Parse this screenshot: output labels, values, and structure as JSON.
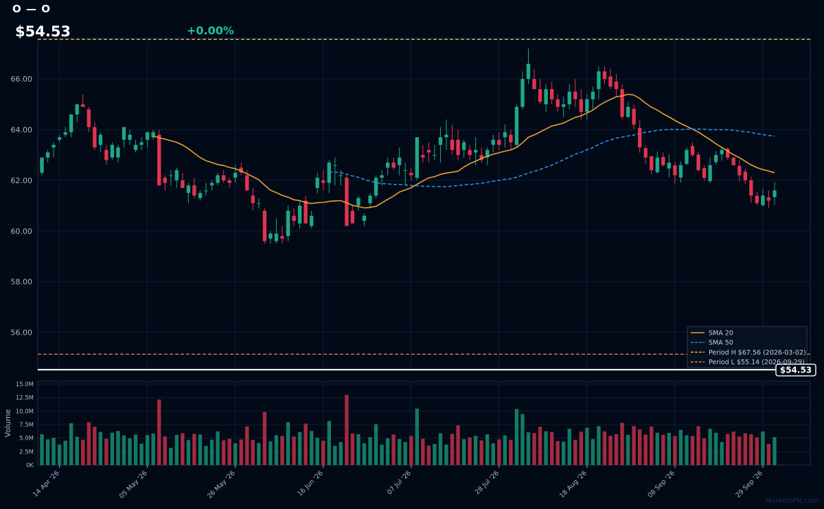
{
  "header": {
    "ticker": "O — O",
    "price": "$54.53",
    "change": "+0.00%"
  },
  "watermark": "MarketsFN.com",
  "colors": {
    "up": "#1fa888",
    "down": "#e0354f",
    "sma20": "#f0a030",
    "sma50": "#2e8ee6",
    "period_high": "#e8b84a",
    "period_low": "#e87a4a",
    "last_price": "#ffffff"
  },
  "last_price_label": "$54.53",
  "chart_data": [
    {
      "type": "candlestick",
      "title": "",
      "ylim": [
        54.5,
        67.6
      ],
      "yticks": [
        56,
        58,
        60,
        62,
        64,
        66
      ],
      "ytick_labels": [
        "56.00",
        "58.00",
        "60.00",
        "62.00",
        "64.00",
        "66.00"
      ],
      "grid": true,
      "legend_placement": "bottom-right",
      "legend": [
        "SMA 20",
        "SMA 50",
        "Period H $67.56 (2026-03-02)",
        "Period L $55.14 (2026-09-29)"
      ],
      "xtick_labels": [
        "14 Apr '26",
        "05 May '26",
        "26 May '26",
        "16 Jun '26",
        "07 Jul '26",
        "28 Jul '26",
        "18 Aug '26",
        "08 Sep '26",
        "29 Sep '26"
      ],
      "xtick_index": [
        3,
        18,
        33,
        48,
        63,
        78,
        93,
        108,
        123
      ],
      "reference_lines": {
        "period_high": 67.56,
        "period_low": 55.14,
        "last": 54.53
      },
      "ohlc": [
        [
          62.3,
          62.9,
          62.2,
          62.9
        ],
        [
          62.9,
          63.2,
          62.7,
          63.1
        ],
        [
          63.3,
          63.5,
          62.9,
          63.4
        ],
        [
          63.6,
          63.8,
          63.5,
          63.7
        ],
        [
          63.8,
          64.1,
          63.7,
          63.9
        ],
        [
          63.9,
          64.6,
          63.7,
          64.6
        ],
        [
          64.6,
          65.0,
          64.3,
          65.0
        ],
        [
          65.0,
          65.4,
          64.9,
          64.9
        ],
        [
          64.8,
          64.9,
          63.9,
          64.1
        ],
        [
          64.1,
          64.3,
          63.2,
          63.3
        ],
        [
          63.4,
          63.9,
          63.1,
          63.8
        ],
        [
          63.2,
          63.4,
          62.6,
          62.8
        ],
        [
          62.9,
          63.5,
          62.8,
          63.4
        ],
        [
          62.9,
          63.4,
          62.7,
          63.3
        ],
        [
          63.6,
          64.1,
          63.3,
          64.1
        ],
        [
          63.6,
          64.0,
          63.4,
          63.8
        ],
        [
          63.2,
          63.6,
          63.1,
          63.4
        ],
        [
          63.4,
          63.7,
          63.2,
          63.5
        ],
        [
          63.6,
          63.8,
          63.3,
          63.9
        ],
        [
          63.7,
          64.0,
          63.6,
          63.9
        ],
        [
          63.8,
          64.0,
          61.8,
          61.8
        ],
        [
          62.1,
          62.2,
          61.6,
          61.9
        ],
        [
          62.2,
          62.4,
          61.8,
          62.2
        ],
        [
          62.0,
          62.5,
          61.7,
          62.4
        ],
        [
          62.0,
          62.3,
          61.7,
          61.7
        ],
        [
          61.5,
          61.9,
          61.1,
          61.8
        ],
        [
          61.8,
          62.1,
          61.3,
          61.4
        ],
        [
          61.3,
          61.6,
          61.2,
          61.5
        ],
        [
          61.6,
          61.9,
          61.4,
          61.6
        ],
        [
          61.8,
          62.0,
          61.6,
          61.9
        ],
        [
          61.9,
          62.3,
          61.8,
          62.2
        ],
        [
          62.2,
          62.4,
          61.9,
          62.0
        ],
        [
          62.0,
          62.1,
          61.7,
          61.9
        ],
        [
          62.1,
          62.6,
          61.9,
          62.3
        ],
        [
          62.5,
          62.7,
          62.2,
          62.3
        ],
        [
          62.2,
          62.4,
          61.6,
          61.6
        ],
        [
          61.4,
          61.7,
          60.8,
          61.1
        ],
        [
          61.1,
          61.3,
          60.9,
          61.1
        ],
        [
          60.8,
          60.9,
          59.5,
          59.6
        ],
        [
          59.7,
          60.0,
          59.5,
          59.9
        ],
        [
          59.6,
          60.5,
          59.5,
          59.9
        ],
        [
          59.8,
          60.2,
          59.5,
          59.7
        ],
        [
          59.8,
          61.0,
          59.6,
          60.8
        ],
        [
          60.6,
          60.9,
          60.2,
          60.4
        ],
        [
          60.3,
          61.2,
          60.1,
          61.0
        ],
        [
          61.2,
          61.4,
          60.3,
          60.3
        ],
        [
          60.2,
          60.8,
          60.1,
          60.6
        ],
        [
          61.7,
          62.3,
          61.5,
          62.1
        ],
        [
          62.0,
          62.4,
          61.6,
          61.9
        ],
        [
          61.9,
          62.8,
          61.5,
          62.7
        ],
        [
          62.6,
          62.9,
          61.8,
          62.6
        ],
        [
          62.2,
          62.4,
          61.8,
          62.2
        ],
        [
          62.1,
          62.2,
          60.2,
          60.2
        ],
        [
          60.8,
          61.0,
          60.4,
          60.3
        ],
        [
          61.0,
          61.4,
          60.8,
          61.3
        ],
        [
          60.4,
          60.7,
          60.2,
          60.6
        ],
        [
          61.1,
          61.5,
          60.9,
          61.4
        ],
        [
          61.4,
          62.2,
          61.3,
          62.1
        ],
        [
          62.1,
          62.4,
          61.8,
          62.2
        ],
        [
          62.5,
          62.9,
          62.2,
          62.7
        ],
        [
          62.7,
          62.9,
          62.4,
          62.5
        ],
        [
          62.6,
          63.3,
          62.2,
          62.9
        ],
        [
          62.4,
          62.7,
          61.8,
          62.4
        ],
        [
          62.3,
          62.5,
          62.0,
          62.2
        ],
        [
          62.1,
          63.7,
          62.0,
          63.7
        ],
        [
          63.0,
          63.4,
          62.7,
          62.9
        ],
        [
          63.2,
          63.5,
          62.7,
          63.1
        ],
        [
          63.0,
          63.4,
          62.8,
          63.0
        ],
        [
          63.4,
          64.1,
          62.7,
          63.7
        ],
        [
          63.7,
          64.4,
          63.2,
          63.8
        ],
        [
          63.6,
          64.2,
          63.0,
          63.2
        ],
        [
          63.6,
          64.0,
          62.8,
          63.0
        ],
        [
          63.2,
          63.6,
          62.9,
          63.5
        ],
        [
          63.2,
          63.4,
          62.8,
          63.0
        ],
        [
          63.1,
          63.7,
          62.6,
          63.2
        ],
        [
          63.0,
          63.3,
          62.7,
          62.8
        ],
        [
          62.9,
          63.3,
          62.6,
          63.2
        ],
        [
          63.4,
          63.8,
          63.1,
          63.6
        ],
        [
          63.6,
          63.9,
          63.2,
          63.4
        ],
        [
          63.7,
          64.2,
          63.3,
          63.9
        ],
        [
          63.8,
          64.0,
          63.2,
          63.5
        ],
        [
          63.4,
          65.0,
          63.3,
          64.9
        ],
        [
          64.9,
          66.3,
          64.8,
          66.0
        ],
        [
          66.0,
          67.2,
          65.8,
          66.6
        ],
        [
          66.0,
          66.4,
          65.6,
          65.6
        ],
        [
          65.6,
          66.0,
          65.0,
          65.1
        ],
        [
          65.0,
          65.8,
          64.7,
          65.6
        ],
        [
          65.6,
          65.9,
          65.0,
          65.2
        ],
        [
          65.2,
          65.4,
          64.7,
          64.9
        ],
        [
          64.9,
          65.3,
          64.5,
          65.0
        ],
        [
          65.0,
          65.8,
          64.8,
          65.5
        ],
        [
          65.5,
          66.0,
          64.9,
          65.2
        ],
        [
          65.2,
          65.6,
          64.4,
          64.7
        ],
        [
          64.7,
          65.4,
          64.4,
          65.2
        ],
        [
          65.2,
          65.7,
          64.8,
          65.5
        ],
        [
          65.6,
          66.5,
          65.2,
          66.3
        ],
        [
          66.3,
          66.5,
          65.8,
          66.0
        ],
        [
          66.1,
          66.4,
          65.6,
          65.7
        ],
        [
          65.9,
          66.2,
          65.3,
          65.6
        ],
        [
          65.6,
          65.8,
          64.4,
          64.5
        ]
      ]
    },
    {
      "type": "bar",
      "title": "",
      "ylabel": "Volume",
      "ylim": [
        0,
        15500000
      ],
      "yticks": [
        0,
        2500000,
        5000000,
        7500000,
        10000000,
        12500000,
        15000000
      ],
      "ytick_labels": [
        "0K",
        "2.5M",
        "5.0M",
        "7.5M",
        "10.0M",
        "12.5M",
        "15.0M"
      ],
      "grid": true
    }
  ]
}
